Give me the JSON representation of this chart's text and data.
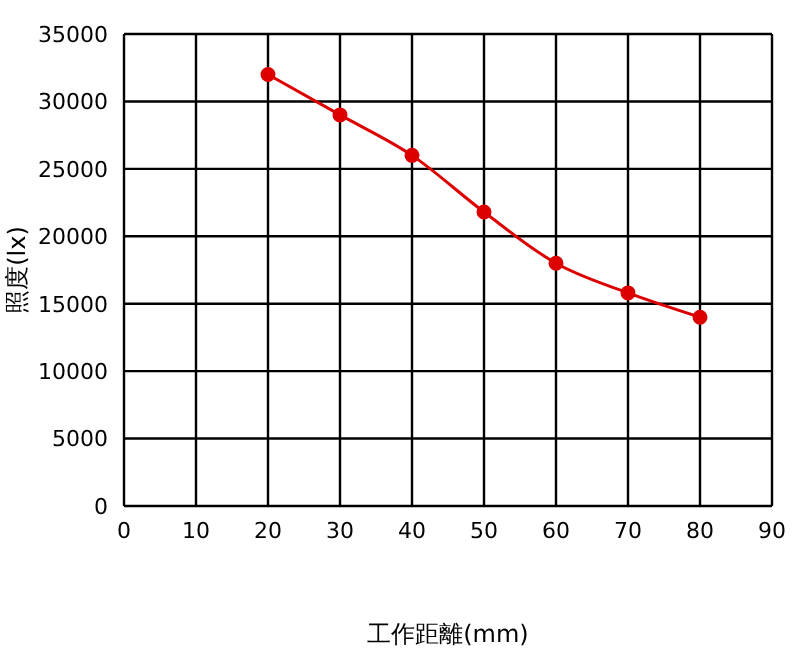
{
  "chart_data": {
    "type": "line",
    "xlabel": "工作距離(mm)",
    "ylabel": "照度(lx)",
    "x": [
      20,
      30,
      40,
      50,
      60,
      70,
      80
    ],
    "series": [
      {
        "color": "#dd0000",
        "values": [
          32000,
          29000,
          26000,
          21800,
          18000,
          15800,
          14000
        ]
      }
    ],
    "xlim": [
      0,
      90
    ],
    "xticks": [
      0,
      10,
      20,
      30,
      40,
      50,
      60,
      70,
      80,
      90
    ],
    "ylim": [
      0,
      35000
    ],
    "yticks": [
      0,
      5000,
      10000,
      15000,
      20000,
      25000,
      30000,
      35000
    ],
    "grid": true,
    "marker": "circle",
    "line_style": "solid"
  }
}
